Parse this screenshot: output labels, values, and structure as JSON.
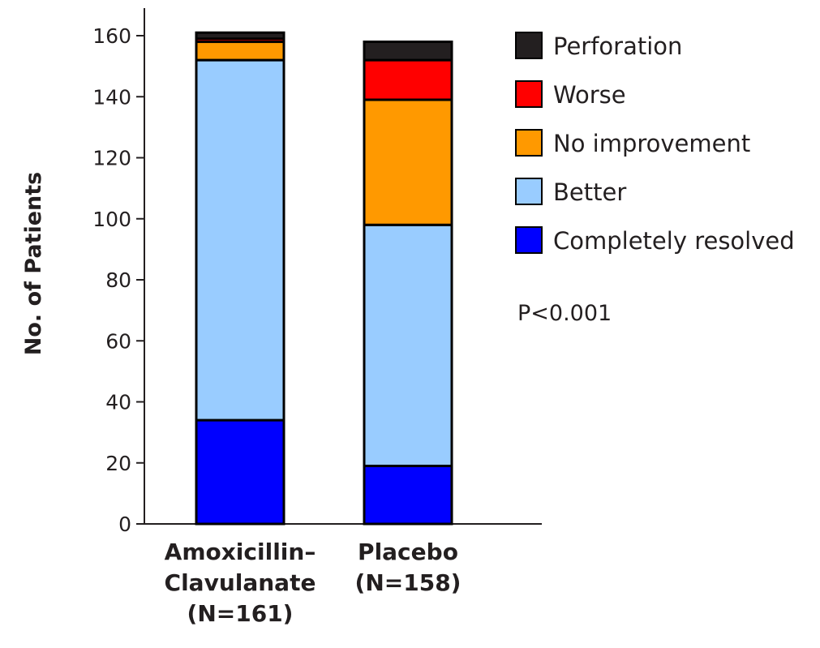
{
  "chart_data": {
    "type": "bar",
    "stacked": true,
    "ylabel": "No. of Patients",
    "ylim": [
      0,
      160
    ],
    "yticks": [
      0,
      20,
      40,
      60,
      80,
      100,
      120,
      140,
      160
    ],
    "categories": [
      [
        "Amoxicillin–",
        "Clavulanate",
        "(N=161)"
      ],
      [
        "Placebo",
        "(N=158)"
      ]
    ],
    "series": [
      {
        "name": "Completely resolved",
        "color": "#0000ff",
        "values": [
          34,
          19
        ]
      },
      {
        "name": "Better",
        "color": "#99ccff",
        "values": [
          118,
          79
        ]
      },
      {
        "name": "No improvement",
        "color": "#ff9900",
        "values": [
          6,
          41
        ]
      },
      {
        "name": "Worse",
        "color": "#ff0000",
        "values": [
          1,
          13
        ]
      },
      {
        "name": "Perforation",
        "color": "#231f20",
        "values": [
          2,
          6
        ]
      }
    ],
    "legend_order": [
      "Perforation",
      "Worse",
      "No improvement",
      "Better",
      "Completely resolved"
    ],
    "legend_position": "right",
    "annotation": "P<0.001",
    "grid": false
  }
}
